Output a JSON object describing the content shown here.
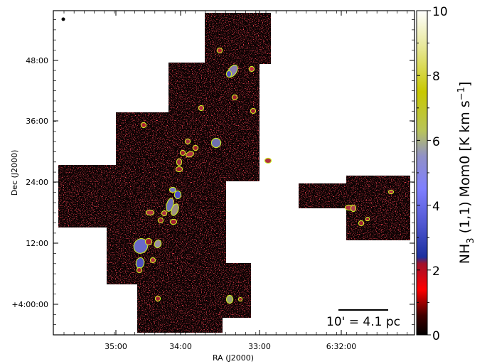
{
  "chart_data": {
    "type": "heatmap",
    "title": "",
    "xlabel": "RA (J2000)",
    "ylabel": "Dec (J2000)",
    "x_ticks": [
      "35:00",
      "34:00",
      "33:00",
      "6:32:00"
    ],
    "y_ticks": [
      "+4:00:00",
      "12:00",
      "24:00",
      "36:00",
      "48:00"
    ],
    "colorbar": {
      "label_main": "NH",
      "label_sub": "3",
      "label_rest": " (1,1) Mom0 [K km s",
      "label_sup": "−1",
      "label_end": "]",
      "range": [
        0,
        10
      ],
      "ticks": [
        "0",
        "2",
        "4",
        "6",
        "8",
        "10"
      ],
      "colors": [
        "#000000",
        "#ff0000",
        "#1a2f9e",
        "#7f7fff",
        "#b8c45a",
        "#c8c800",
        "#ffffff"
      ]
    },
    "scale_bar": "10' = 4.1 pc",
    "contour_color": "#ccee22",
    "map_background": "#0b0303",
    "grid": false
  }
}
